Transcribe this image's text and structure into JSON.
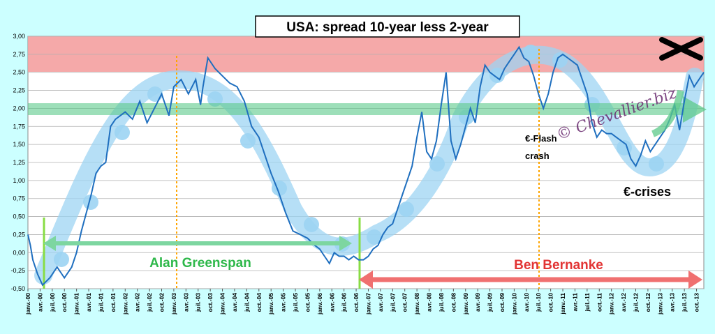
{
  "chart_data": {
    "type": "line",
    "title": "USA: spread 10-year less 2-year",
    "xlabel": "",
    "ylabel": "",
    "ylim": [
      -0.5,
      3.0
    ],
    "xlim": [
      2000.0,
      2013.9
    ],
    "yticks": [
      "-0,50",
      "-0,25",
      "0,00",
      "0,25",
      "0,50",
      "0,75",
      "1,00",
      "1,25",
      "1,50",
      "1,75",
      "2,00",
      "2,25",
      "2,50",
      "2,75",
      "3,00"
    ],
    "xticks": [
      "janv.-00",
      "avr.-00",
      "juil.-00",
      "oct.-00",
      "janv.-01",
      "avr.-01",
      "juil.-01",
      "oct.-01",
      "janv.-02",
      "avr.-02",
      "juil.-02",
      "oct.-02",
      "janv.-03",
      "avr.-03",
      "juil.-03",
      "oct.-03",
      "janv.-04",
      "avr.-04",
      "juil.-04",
      "oct.-04",
      "janv.-05",
      "avr.-05",
      "juil.-05",
      "oct.-05",
      "janv.-06",
      "avr.-06",
      "juil.-06",
      "oct.-06",
      "janv.-07",
      "avr.-07",
      "juil.-07",
      "oct.-07",
      "janv.-08",
      "avr.-08",
      "juil.-08",
      "oct.-08",
      "janv.-09",
      "avr.-09",
      "juil.-09",
      "oct.-09",
      "janv.-10",
      "avr.-10",
      "juil.-10",
      "oct.-10",
      "janv.-11",
      "avr.-11",
      "juil.-11",
      "oct.-11",
      "janv.-12",
      "avr.-12",
      "juil.-12",
      "oct.-12",
      "janv.-13",
      "avr.-13",
      "juil.-13",
      "oct.-13"
    ],
    "grid": true,
    "danger_zone": [
      2.5,
      3.0
    ],
    "series": [
      {
        "color": "#1f6fbf",
        "x": [
          2000.0,
          2000.05,
          2000.1,
          2000.2,
          2000.3,
          2000.45,
          2000.6,
          2000.75,
          2000.9,
          2001.0,
          2001.1,
          2001.2,
          2001.3,
          2001.4,
          2001.5,
          2001.6,
          2001.7,
          2001.8,
          2001.9,
          2002.0,
          2002.15,
          2002.3,
          2002.45,
          2002.6,
          2002.75,
          2002.9,
          2003.0,
          2003.15,
          2003.3,
          2003.45,
          2003.55,
          2003.6,
          2003.7,
          2003.85,
          2004.0,
          2004.15,
          2004.3,
          2004.45,
          2004.6,
          2004.75,
          2004.9,
          2005.0,
          2005.15,
          2005.3,
          2005.45,
          2005.6,
          2005.75,
          2005.9,
          2006.0,
          2006.1,
          2006.2,
          2006.3,
          2006.4,
          2006.5,
          2006.6,
          2006.7,
          2006.8,
          2006.9,
          2007.0,
          2007.1,
          2007.2,
          2007.3,
          2007.4,
          2007.5,
          2007.6,
          2007.7,
          2007.8,
          2007.9,
          2008.0,
          2008.1,
          2008.2,
          2008.3,
          2008.4,
          2008.5,
          2008.6,
          2008.7,
          2008.8,
          2008.9,
          2009.0,
          2009.1,
          2009.2,
          2009.3,
          2009.4,
          2009.5,
          2009.6,
          2009.7,
          2009.8,
          2009.9,
          2010.0,
          2010.1,
          2010.2,
          2010.3,
          2010.4,
          2010.5,
          2010.6,
          2010.7,
          2010.8,
          2010.9,
          2011.0,
          2011.1,
          2011.2,
          2011.3,
          2011.4,
          2011.5,
          2011.6,
          2011.7,
          2011.8,
          2011.9,
          2012.0,
          2012.1,
          2012.2,
          2012.3,
          2012.4,
          2012.5,
          2012.6,
          2012.7,
          2012.8,
          2012.9,
          2013.0,
          2013.1,
          2013.2,
          2013.3,
          2013.4,
          2013.5,
          2013.6,
          2013.7,
          2013.8,
          2013.9
        ],
        "y": [
          0.25,
          0.1,
          -0.1,
          -0.3,
          -0.45,
          -0.35,
          -0.2,
          -0.35,
          -0.2,
          0.0,
          0.3,
          0.55,
          0.8,
          1.1,
          1.2,
          1.25,
          1.75,
          1.85,
          1.9,
          1.95,
          1.85,
          2.1,
          1.8,
          2.0,
          2.2,
          1.9,
          2.3,
          2.4,
          2.2,
          2.4,
          2.05,
          2.3,
          2.7,
          2.55,
          2.45,
          2.35,
          2.3,
          2.1,
          1.75,
          1.6,
          1.3,
          1.1,
          0.85,
          0.55,
          0.3,
          0.25,
          0.2,
          0.1,
          0.05,
          -0.05,
          -0.15,
          0.0,
          -0.05,
          -0.05,
          -0.1,
          -0.05,
          -0.1,
          -0.1,
          -0.05,
          0.05,
          0.1,
          0.25,
          0.35,
          0.4,
          0.6,
          0.8,
          1.0,
          1.2,
          1.6,
          1.95,
          1.4,
          1.3,
          1.55,
          2.05,
          2.5,
          1.55,
          1.3,
          1.5,
          1.75,
          2.0,
          1.8,
          2.3,
          2.6,
          2.5,
          2.45,
          2.4,
          2.55,
          2.65,
          2.75,
          2.85,
          2.7,
          2.65,
          2.45,
          2.2,
          2.0,
          2.2,
          2.5,
          2.7,
          2.75,
          2.7,
          2.65,
          2.6,
          2.4,
          2.2,
          1.8,
          1.6,
          1.7,
          1.65,
          1.65,
          1.6,
          1.55,
          1.5,
          1.3,
          1.2,
          1.35,
          1.55,
          1.4,
          1.5,
          1.6,
          1.7,
          1.85,
          2.05,
          1.7,
          2.1,
          2.45,
          2.3,
          2.4,
          2.5
        ]
      }
    ],
    "annotations": {
      "alan": "Alan  Greenspan",
      "ben": "Ben  Bernanke",
      "flash1": "€-Flash",
      "flash2": "crash",
      "crises": "€-crises",
      "watermark": "© Chevallier.biz"
    },
    "colors": {
      "background": "#ccffff",
      "plot": "#ffffff",
      "danger": "#f4a0a0",
      "green_band": "#7dd6a0",
      "blue_band": "#9dd4f3",
      "greenspan": "#2eb84a",
      "bernanke": "#f07070",
      "marker_line": "#ffa500"
    }
  }
}
